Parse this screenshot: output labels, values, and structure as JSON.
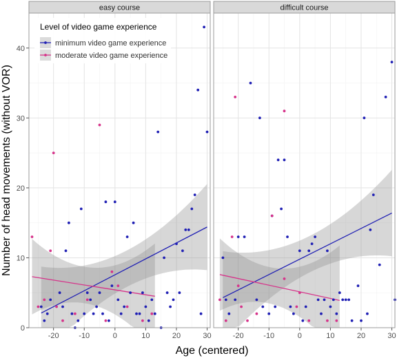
{
  "chart_data": {
    "type": "scatter",
    "ylabel": "Number of head movements (without VOR)",
    "xlabel": "Age (centered)",
    "xlim": [
      -28,
      31
    ],
    "ylim": [
      0,
      45
    ],
    "x_ticks": [
      -20,
      -10,
      0,
      10,
      20,
      30
    ],
    "x_tick_labels": [
      "-20",
      "-10",
      "0",
      "10",
      "20",
      "30"
    ],
    "y_ticks": [
      0,
      10,
      20,
      30,
      40
    ],
    "y_tick_labels": [
      "0",
      "10",
      "20",
      "30",
      "40"
    ],
    "grid": true,
    "legend": {
      "title": "Level of video game experience",
      "placement": "top-left",
      "entries": [
        {
          "label": "minimum video game experience",
          "color": "#1f1fb4"
        },
        {
          "label": "moderate video game experience",
          "color": "#d6338a"
        }
      ]
    },
    "panels": [
      {
        "title": "easy course",
        "series": [
          {
            "name": "minimum video game experience",
            "color": "#1f1fb4",
            "points": [
              [
                -24,
                3
              ],
              [
                -23,
                1
              ],
              [
                -22,
                2
              ],
              [
                -21,
                4
              ],
              [
                -18,
                5
              ],
              [
                -17,
                3
              ],
              [
                -16,
                11
              ],
              [
                -15,
                15
              ],
              [
                -14,
                2
              ],
              [
                -13,
                0
              ],
              [
                -12,
                1
              ],
              [
                -11,
                17
              ],
              [
                -10,
                2
              ],
              [
                -9,
                5
              ],
              [
                -8,
                4
              ],
              [
                -7,
                2
              ],
              [
                -6,
                3
              ],
              [
                -5,
                5
              ],
              [
                -4,
                2
              ],
              [
                -3,
                18
              ],
              [
                -2,
                1
              ],
              [
                -1,
                6
              ],
              [
                0,
                18
              ],
              [
                1,
                4
              ],
              [
                2,
                2
              ],
              [
                3,
                3
              ],
              [
                4,
                13
              ],
              [
                5,
                5
              ],
              [
                6,
                15
              ],
              [
                7,
                2
              ],
              [
                8,
                2
              ],
              [
                9,
                5
              ],
              [
                10,
                3
              ],
              [
                11,
                1
              ],
              [
                12,
                4
              ],
              [
                13,
                2
              ],
              [
                14,
                28
              ],
              [
                15,
                0
              ],
              [
                16,
                10
              ],
              [
                17,
                5
              ],
              [
                18,
                3
              ],
              [
                19,
                4
              ],
              [
                20,
                12
              ],
              [
                21,
                5
              ],
              [
                22,
                11
              ],
              [
                23,
                14
              ],
              [
                24,
                14
              ],
              [
                25,
                17
              ],
              [
                26,
                19
              ],
              [
                27,
                34
              ],
              [
                28,
                2
              ],
              [
                29,
                43
              ],
              [
                30,
                28
              ]
            ],
            "fit": {
              "x": [
                -24,
                30
              ],
              "y": [
                2.1,
                14.4
              ]
            }
          },
          {
            "name": "moderate video game experience",
            "color": "#d6338a",
            "points": [
              [
                -27,
                13
              ],
              [
                -25,
                3
              ],
              [
                -23,
                4
              ],
              [
                -21,
                11
              ],
              [
                -20,
                25
              ],
              [
                -19,
                3
              ],
              [
                -17,
                1
              ],
              [
                -13,
                2
              ],
              [
                -9,
                4
              ],
              [
                -5,
                29
              ],
              [
                -3,
                1
              ],
              [
                -1,
                8
              ],
              [
                1,
                6
              ],
              [
                4,
                3
              ],
              [
                9,
                1
              ],
              [
                12,
                2
              ]
            ],
            "fit": {
              "x": [
                -27,
                13
              ],
              "y": [
                7.3,
                4.5
              ]
            }
          }
        ]
      },
      {
        "title": "difficult course",
        "series": [
          {
            "name": "minimum video game experience",
            "color": "#1f1fb4",
            "points": [
              [
                -25,
                10
              ],
              [
                -24,
                4
              ],
              [
                -23,
                2
              ],
              [
                -21,
                4
              ],
              [
                -20,
                13
              ],
              [
                -18,
                13
              ],
              [
                -16,
                35
              ],
              [
                -14,
                4
              ],
              [
                -13,
                30
              ],
              [
                -12,
                3
              ],
              [
                -10,
                2
              ],
              [
                -9,
                16
              ],
              [
                -8,
                3
              ],
              [
                -7,
                24
              ],
              [
                -6,
                17
              ],
              [
                -5,
                24
              ],
              [
                -4,
                13
              ],
              [
                -3,
                3
              ],
              [
                -2,
                2
              ],
              [
                0,
                11
              ],
              [
                1,
                1
              ],
              [
                2,
                3
              ],
              [
                3,
                11
              ],
              [
                4,
                12
              ],
              [
                5,
                13
              ],
              [
                6,
                4
              ],
              [
                7,
                2
              ],
              [
                8,
                4
              ],
              [
                9,
                11
              ],
              [
                10,
                3
              ],
              [
                11,
                4
              ],
              [
                12,
                2
              ],
              [
                13,
                5
              ],
              [
                14,
                4
              ],
              [
                15,
                4
              ],
              [
                16,
                4
              ],
              [
                17,
                1
              ],
              [
                19,
                6
              ],
              [
                20,
                1
              ],
              [
                21,
                30
              ],
              [
                22,
                2
              ],
              [
                23,
                14
              ],
              [
                24,
                19
              ],
              [
                26,
                9
              ],
              [
                28,
                33
              ],
              [
                30,
                38
              ],
              [
                31,
                4
              ]
            ],
            "fit": {
              "x": [
                -25,
                30
              ],
              "y": [
                4.3,
                16.4
              ]
            }
          },
          {
            "name": "moderate video game experience",
            "color": "#d6338a",
            "points": [
              [
                -26,
                4
              ],
              [
                -24,
                1
              ],
              [
                -22,
                13
              ],
              [
                -21,
                33
              ],
              [
                -20,
                6
              ],
              [
                -19,
                3
              ],
              [
                -17,
                1
              ],
              [
                -14,
                2
              ],
              [
                -9,
                16
              ],
              [
                -5,
                31
              ],
              [
                -5,
                7
              ],
              [
                -1,
                3
              ],
              [
                0,
                5
              ],
              [
                3,
                1
              ],
              [
                9,
                1
              ],
              [
                12,
                1
              ]
            ],
            "fit": {
              "x": [
                -26,
                13
              ],
              "y": [
                7.6,
                3.9
              ]
            }
          }
        ]
      }
    ]
  }
}
